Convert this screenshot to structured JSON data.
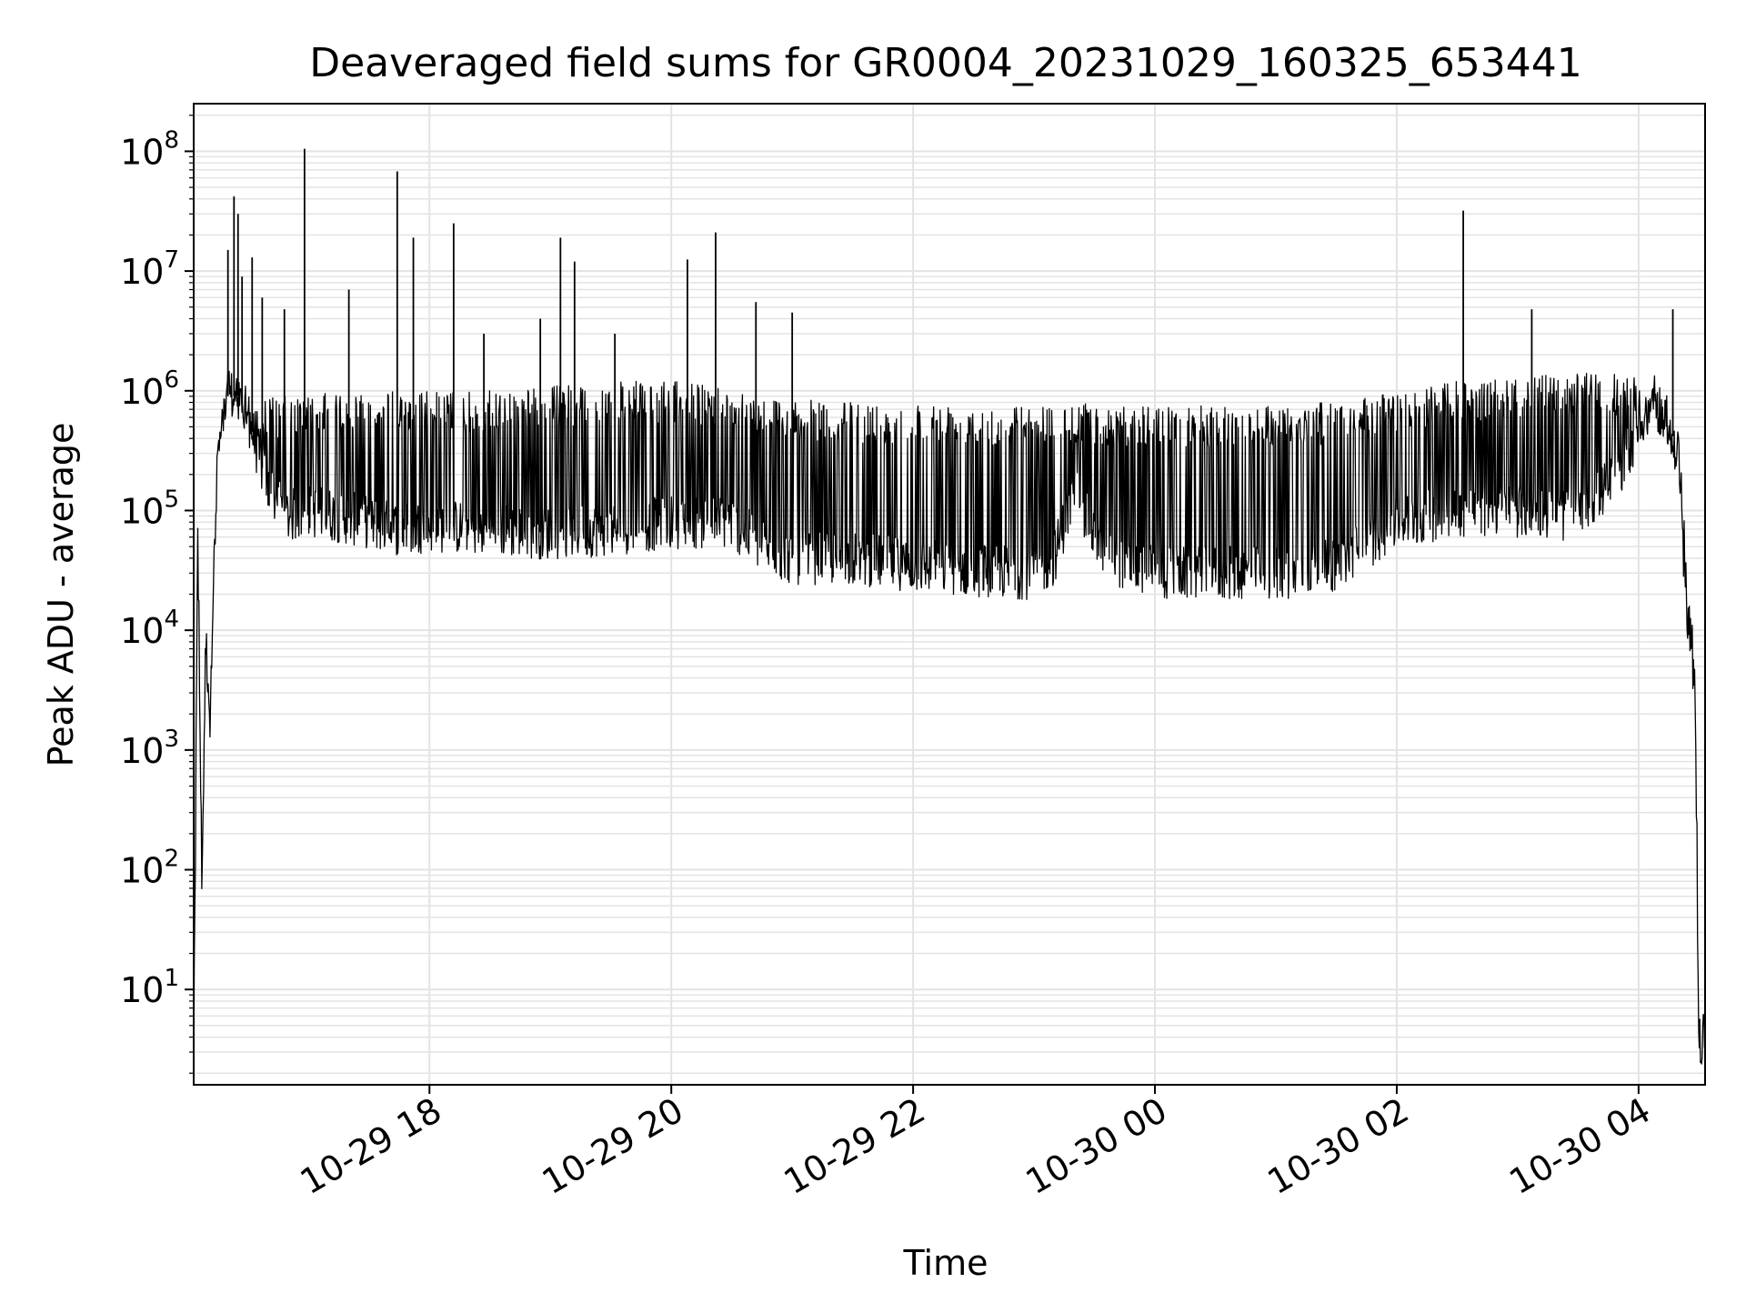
{
  "chart_data": {
    "type": "line",
    "title": "Deaveraged field sums for GR0004_20231029_160325_653441",
    "xlabel": "Time",
    "ylabel": "Peak ADU - average",
    "yscale": "log",
    "xlim": [
      "2023-10-29 16:03",
      "2023-10-30 04:33"
    ],
    "ylim": [
      1.6,
      250000000
    ],
    "x_ticks": [
      "2023-10-29 18:00",
      "2023-10-29 20:00",
      "2023-10-29 22:00",
      "2023-10-30 00:00",
      "2023-10-30 02:00",
      "2023-10-30 04:00"
    ],
    "x_tick_labels": [
      "10-29 18",
      "10-29 20",
      "10-29 22",
      "10-30 00",
      "10-30 02",
      "10-30 04"
    ],
    "y_ticks": [
      10,
      100,
      1000,
      10000,
      100000,
      1000000,
      10000000,
      100000000
    ],
    "y_tick_labels": [
      {
        "base": "10",
        "exp": "1"
      },
      {
        "base": "10",
        "exp": "2"
      },
      {
        "base": "10",
        "exp": "3"
      },
      {
        "base": "10",
        "exp": "4"
      },
      {
        "base": "10",
        "exp": "5"
      },
      {
        "base": "10",
        "exp": "6"
      },
      {
        "base": "10",
        "exp": "7"
      },
      {
        "base": "10",
        "exp": "8"
      }
    ],
    "grid": true,
    "line_color": "#000000",
    "grid_color": "#e3e3e3",
    "series": [
      {
        "x": [
          "2023-10-29 16:03",
          "2023-10-29 16:05",
          "2023-10-29 16:07",
          "2023-10-29 16:09",
          "2023-10-29 16:11",
          "2023-10-29 16:13",
          "2023-10-29 16:15",
          "2023-10-29 16:20",
          "2023-10-29 16:25",
          "2023-10-29 16:30",
          "2023-10-29 16:35",
          "2023-10-29 16:40",
          "2023-10-29 16:50",
          "2023-10-29 17:00",
          "2023-10-29 17:15",
          "2023-10-29 17:30",
          "2023-10-29 17:45",
          "2023-10-29 18:00",
          "2023-10-29 18:30",
          "2023-10-29 19:00",
          "2023-10-29 19:30",
          "2023-10-29 20:00",
          "2023-10-29 20:30",
          "2023-10-29 20:45",
          "2023-10-29 21:00",
          "2023-10-29 21:30",
          "2023-10-29 22:00",
          "2023-10-29 22:30",
          "2023-10-29 23:00",
          "2023-10-29 23:10",
          "2023-10-29 23:20",
          "2023-10-29 23:30",
          "2023-10-29 23:45",
          "2023-10-30 00:00",
          "2023-10-30 00:30",
          "2023-10-30 01:00",
          "2023-10-30 01:30",
          "2023-10-30 02:00",
          "2023-10-30 02:30",
          "2023-10-30 03:00",
          "2023-10-30 03:30",
          "2023-10-30 03:50",
          "2023-10-30 04:00",
          "2023-10-30 04:10",
          "2023-10-30 04:20",
          "2023-10-30 04:25",
          "2023-10-30 04:28",
          "2023-10-30 04:30",
          "2023-10-30 04:33"
        ],
        "baseline": [
          2,
          100000,
          90,
          8000,
          2500,
          30000,
          300000,
          900000,
          900000,
          600000,
          300000,
          150000,
          90000,
          100000,
          90000,
          80000,
          70000,
          75000,
          70000,
          65000,
          70000,
          80000,
          80000,
          50000,
          40000,
          40000,
          35000,
          32000,
          30000,
          40000,
          150000,
          60000,
          35000,
          30000,
          30000,
          30000,
          35000,
          80000,
          100000,
          100000,
          90000,
          200000,
          500000,
          900000,
          300000,
          10000,
          5000,
          4,
          4
        ],
        "envelope": [
          2,
          100000,
          90,
          8000,
          2500,
          30000,
          600000,
          1500000,
          1200000,
          1000000,
          900000,
          900000,
          900000,
          900000,
          1000000,
          1000000,
          1000000,
          1000000,
          1000000,
          1100000,
          1200000,
          1200000,
          1100000,
          900000,
          850000,
          800000,
          800000,
          800000,
          750000,
          800000,
          800000,
          780000,
          750000,
          750000,
          750000,
          780000,
          800000,
          1000000,
          1200000,
          1300000,
          1400000,
          1400000,
          1300000,
          1000000,
          300000,
          10000,
          5000,
          4,
          4
        ],
        "spikes": [
          {
            "x": "2023-10-29 16:20",
            "y": 15000000
          },
          {
            "x": "2023-10-29 16:23",
            "y": 42000000
          },
          {
            "x": "2023-10-29 16:25",
            "y": 30000000
          },
          {
            "x": "2023-10-29 16:27",
            "y": 9000000
          },
          {
            "x": "2023-10-29 16:32",
            "y": 13000000
          },
          {
            "x": "2023-10-29 16:37",
            "y": 6000000
          },
          {
            "x": "2023-10-29 16:48",
            "y": 4800000
          },
          {
            "x": "2023-10-29 16:58",
            "y": 105000000
          },
          {
            "x": "2023-10-29 17:20",
            "y": 7000000
          },
          {
            "x": "2023-10-29 17:44",
            "y": 68000000
          },
          {
            "x": "2023-10-29 17:52",
            "y": 19000000
          },
          {
            "x": "2023-10-29 18:12",
            "y": 25000000
          },
          {
            "x": "2023-10-29 18:27",
            "y": 3000000
          },
          {
            "x": "2023-10-29 18:55",
            "y": 4000000
          },
          {
            "x": "2023-10-29 19:05",
            "y": 19000000
          },
          {
            "x": "2023-10-29 19:12",
            "y": 12000000
          },
          {
            "x": "2023-10-29 19:32",
            "y": 3000000
          },
          {
            "x": "2023-10-29 20:08",
            "y": 12500000
          },
          {
            "x": "2023-10-29 20:22",
            "y": 21000000
          },
          {
            "x": "2023-10-29 20:42",
            "y": 5500000
          },
          {
            "x": "2023-10-29 21:00",
            "y": 4500000
          },
          {
            "x": "2023-10-30 02:33",
            "y": 32000000
          },
          {
            "x": "2023-10-30 03:07",
            "y": 4800000
          },
          {
            "x": "2023-10-30 04:17",
            "y": 4800000
          }
        ]
      }
    ]
  }
}
